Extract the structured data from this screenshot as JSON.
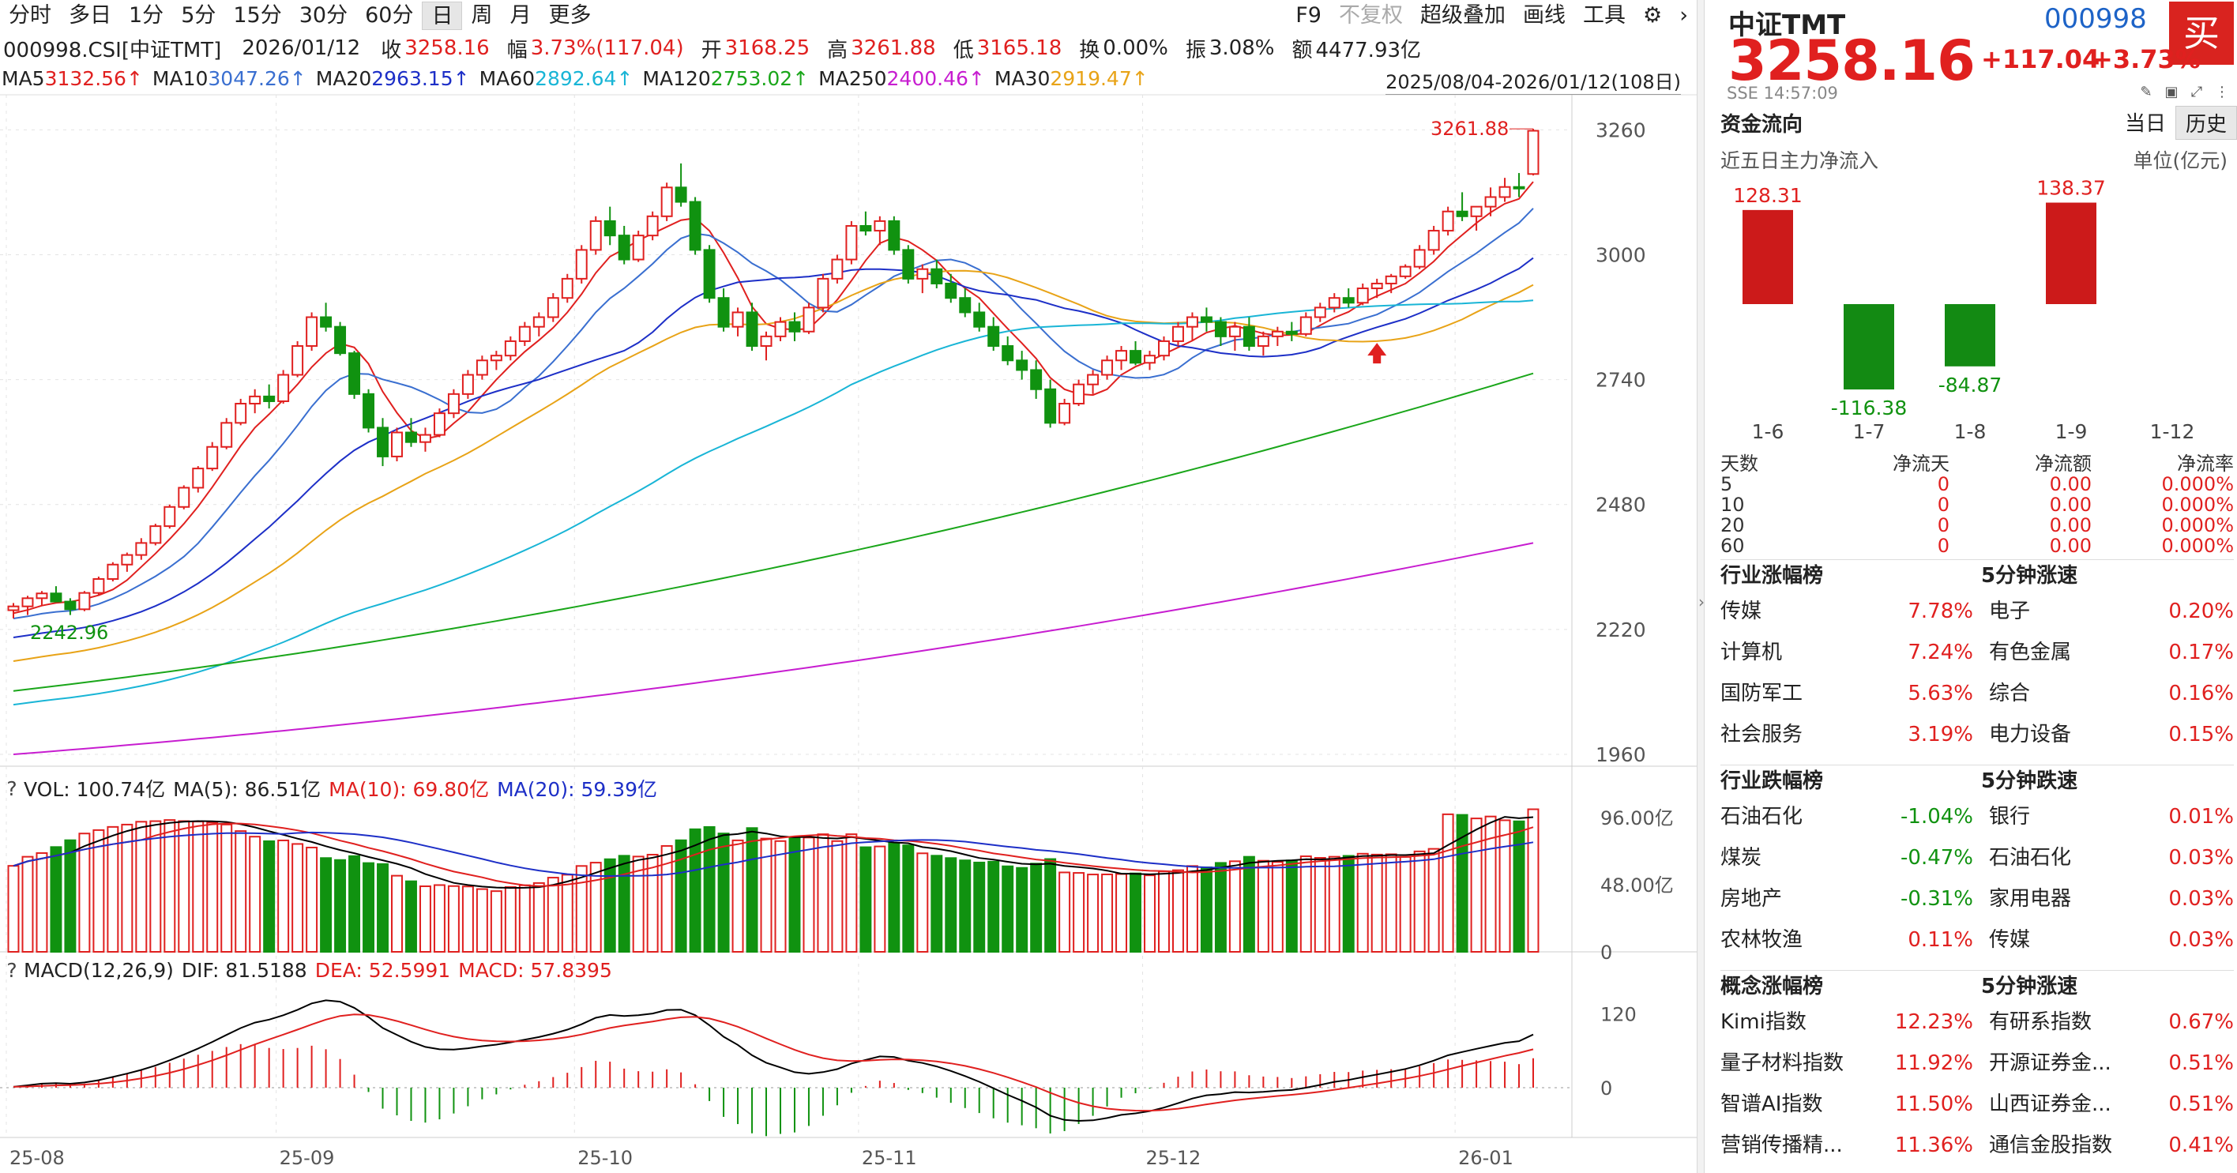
{
  "toolbar": {
    "periods": [
      "分时",
      "多日",
      "1分",
      "5分",
      "15分",
      "30分",
      "60分",
      "日",
      "周",
      "月",
      "更多"
    ],
    "active_period": "日",
    "right_items": [
      "F9",
      "不复权",
      "超级叠加",
      "画线",
      "工具"
    ]
  },
  "quote_line": {
    "code": "000998.CSI[中证TMT]",
    "date": "2026/01/12",
    "close_label": "收",
    "close": "3258.16",
    "amp_label": "幅",
    "amp": "3.73%(117.04)",
    "open_label": "开",
    "open": "3168.25",
    "high_label": "高",
    "high": "3261.88",
    "low_label": "低",
    "low": "3165.18",
    "turnover_label": "换",
    "turnover": "0.00%",
    "swing_label": "振",
    "swing": "3.08%",
    "amount_label": "额",
    "amount": "4477.93亿"
  },
  "ma_legend": [
    {
      "label": "MA5",
      "value": "3132.56↑",
      "color": "#e0201f"
    },
    {
      "label": "MA10",
      "value": "3047.26↑",
      "color": "#3a6fd0"
    },
    {
      "label": "MA20",
      "value": "2963.15↑",
      "color": "#1d2fc7"
    },
    {
      "label": "MA60",
      "value": "2892.64↑",
      "color": "#19b5d6"
    },
    {
      "label": "MA120",
      "value": "2753.02↑",
      "color": "#1aa61a"
    },
    {
      "label": "MA250",
      "value": "2400.46↑",
      "color": "#c71dd0"
    },
    {
      "label": "MA30",
      "value": "2919.47↑",
      "color": "#e8a317"
    }
  ],
  "date_range": "2025/08/04-2026/01/12(108日)",
  "price_axis": [
    "3260",
    "3000",
    "2740",
    "2480",
    "2220",
    "1960"
  ],
  "price_annotations": {
    "high": "3261.88",
    "low": "2242.96"
  },
  "volume_legend": {
    "vol": "VOL: 100.74亿",
    "ma5": "MA(5): 86.51亿",
    "ma10": "MA(10): 69.80亿",
    "ma20": "MA(20): 59.39亿"
  },
  "volume_axis": [
    "96.00亿",
    "48.00亿",
    "0"
  ],
  "macd_legend": {
    "title": "MACD(12,26,9)",
    "dif": "DIF: 81.5188",
    "dea": "DEA: 52.5991",
    "macd": "MACD: 57.8395"
  },
  "macd_axis": [
    "120",
    "0"
  ],
  "x_axis": [
    "25-08",
    "25-09",
    "25-10",
    "25-11",
    "25-12",
    "26-01"
  ],
  "colors": {
    "up": "#e0201f",
    "down": "#109210",
    "accent": "#1d63c7"
  },
  "right_panel": {
    "name": "中证TMT",
    "code": "000998",
    "buy_label": "买",
    "price": "3258.16",
    "change": "+117.04",
    "change_pct": "+3.73%",
    "exchange_time": "SSE  14:57:09",
    "flow": {
      "title": "资金流向",
      "tabs": [
        "当日",
        "历史"
      ],
      "active_tab": "历史",
      "subtitle": "近五日主力净流入",
      "unit": "单位(亿元)",
      "days": [
        "1-6",
        "1-7",
        "1-8",
        "1-9",
        "1-12"
      ],
      "values": [
        128.31,
        -116.38,
        -84.87,
        138.37,
        null
      ],
      "value_labels": [
        "128.31",
        "-116.38",
        "-84.87",
        "138.37",
        ""
      ]
    },
    "flow_table": {
      "headers": [
        "天数",
        "净流天",
        "净流额",
        "净流率"
      ],
      "rows": [
        [
          "5",
          "0",
          "0.00",
          "0.000%"
        ],
        [
          "10",
          "0",
          "0.00",
          "0.000%"
        ],
        [
          "20",
          "0",
          "0.00",
          "0.000%"
        ],
        [
          "60",
          "0",
          "0.00",
          "0.000%"
        ]
      ]
    },
    "rankings": [
      {
        "title": "行业涨幅榜",
        "title2": "5分钟涨速",
        "rows": [
          [
            "传媒",
            "7.78%",
            "电子",
            "0.20%"
          ],
          [
            "计算机",
            "7.24%",
            "有色金属",
            "0.17%"
          ],
          [
            "国防军工",
            "5.63%",
            "综合",
            "0.16%"
          ],
          [
            "社会服务",
            "3.19%",
            "电力设备",
            "0.15%"
          ]
        ]
      },
      {
        "title": "行业跌幅榜",
        "title2": "5分钟跌速",
        "rows": [
          [
            "石油石化",
            "-1.04%",
            "银行",
            "0.01%"
          ],
          [
            "煤炭",
            "-0.47%",
            "石油石化",
            "0.03%"
          ],
          [
            "房地产",
            "-0.31%",
            "家用电器",
            "0.03%"
          ],
          [
            "农林牧渔",
            "0.11%",
            "传媒",
            "0.03%"
          ]
        ]
      },
      {
        "title": "概念涨幅榜",
        "title2": "5分钟涨速",
        "rows": [
          [
            "Kimi指数",
            "12.23%",
            "有研系指数",
            "0.67%"
          ],
          [
            "量子材料指数",
            "11.92%",
            "开源证券金...",
            "0.51%"
          ],
          [
            "智谱AI指数",
            "11.50%",
            "山西证券金...",
            "0.51%"
          ],
          [
            "营销传播精...",
            "11.36%",
            "通信金股指数",
            "0.41%"
          ]
        ]
      }
    ]
  },
  "chart_data": {
    "type": "candlestick",
    "x_range": [
      "2025-08-04",
      "2026-01-12"
    ],
    "ylim": [
      1960,
      3300
    ],
    "ohlc_keypoints": [
      [
        2260,
        2275,
        2243,
        2268
      ],
      [
        2268,
        2290,
        2250,
        2285
      ],
      [
        2285,
        2300,
        2270,
        2295
      ],
      [
        2295,
        2310,
        2280,
        2278
      ],
      [
        2278,
        2285,
        2250,
        2262
      ],
      [
        2262,
        2300,
        2258,
        2296
      ],
      [
        2296,
        2330,
        2290,
        2325
      ],
      [
        2325,
        2360,
        2320,
        2355
      ],
      [
        2355,
        2380,
        2340,
        2375
      ],
      [
        2375,
        2410,
        2365,
        2400
      ],
      [
        2400,
        2440,
        2395,
        2435
      ],
      [
        2435,
        2480,
        2430,
        2475
      ],
      [
        2475,
        2520,
        2470,
        2515
      ],
      [
        2515,
        2560,
        2505,
        2555
      ],
      [
        2555,
        2610,
        2550,
        2600
      ],
      [
        2600,
        2660,
        2595,
        2650
      ],
      [
        2650,
        2700,
        2645,
        2690
      ],
      [
        2690,
        2720,
        2670,
        2705
      ],
      [
        2705,
        2730,
        2680,
        2695
      ],
      [
        2695,
        2760,
        2690,
        2750
      ],
      [
        2750,
        2820,
        2745,
        2810
      ],
      [
        2810,
        2880,
        2800,
        2870
      ],
      [
        2870,
        2900,
        2840,
        2850
      ],
      [
        2850,
        2860,
        2790,
        2795
      ],
      [
        2795,
        2800,
        2700,
        2710
      ],
      [
        2710,
        2720,
        2630,
        2640
      ],
      [
        2640,
        2660,
        2560,
        2580
      ],
      [
        2580,
        2640,
        2570,
        2630
      ],
      [
        2630,
        2660,
        2600,
        2610
      ],
      [
        2610,
        2640,
        2590,
        2625
      ],
      [
        2625,
        2680,
        2620,
        2670
      ],
      [
        2670,
        2720,
        2660,
        2710
      ],
      [
        2710,
        2760,
        2700,
        2750
      ],
      [
        2750,
        2790,
        2740,
        2780
      ],
      [
        2780,
        2800,
        2760,
        2790
      ],
      [
        2790,
        2830,
        2780,
        2820
      ],
      [
        2820,
        2860,
        2810,
        2850
      ],
      [
        2850,
        2880,
        2830,
        2870
      ],
      [
        2870,
        2920,
        2860,
        2910
      ],
      [
        2910,
        2960,
        2900,
        2950
      ],
      [
        2950,
        3020,
        2940,
        3010
      ],
      [
        3010,
        3080,
        3000,
        3070
      ],
      [
        3070,
        3100,
        3020,
        3040
      ],
      [
        3040,
        3060,
        2980,
        2990
      ],
      [
        2990,
        3050,
        2985,
        3040
      ],
      [
        3040,
        3090,
        3030,
        3080
      ],
      [
        3080,
        3150,
        3070,
        3140
      ],
      [
        3140,
        3190,
        3100,
        3110
      ],
      [
        3110,
        3120,
        3000,
        3010
      ],
      [
        3010,
        3020,
        2900,
        2910
      ],
      [
        2910,
        2930,
        2840,
        2850
      ],
      [
        2850,
        2890,
        2830,
        2880
      ],
      [
        2880,
        2900,
        2800,
        2810
      ],
      [
        2810,
        2840,
        2780,
        2830
      ],
      [
        2830,
        2870,
        2820,
        2860
      ],
      [
        2860,
        2880,
        2820,
        2840
      ],
      [
        2840,
        2900,
        2835,
        2890
      ],
      [
        2890,
        2960,
        2880,
        2950
      ],
      [
        2950,
        3000,
        2940,
        2990
      ],
      [
        2990,
        3070,
        2980,
        3060
      ],
      [
        3060,
        3090,
        3040,
        3050
      ],
      [
        3050,
        3080,
        3020,
        3070
      ],
      [
        3070,
        3080,
        3000,
        3010
      ],
      [
        3010,
        3020,
        2940,
        2950
      ],
      [
        2950,
        2980,
        2920,
        2970
      ],
      [
        2970,
        2990,
        2930,
        2940
      ],
      [
        2940,
        2960,
        2900,
        2910
      ],
      [
        2910,
        2930,
        2870,
        2880
      ],
      [
        2880,
        2900,
        2840,
        2850
      ],
      [
        2850,
        2870,
        2800,
        2810
      ],
      [
        2810,
        2830,
        2770,
        2780
      ],
      [
        2780,
        2800,
        2740,
        2760
      ],
      [
        2760,
        2780,
        2700,
        2720
      ],
      [
        2720,
        2740,
        2640,
        2650
      ],
      [
        2650,
        2700,
        2645,
        2690
      ],
      [
        2690,
        2740,
        2685,
        2730
      ],
      [
        2730,
        2760,
        2710,
        2750
      ],
      [
        2750,
        2790,
        2740,
        2780
      ],
      [
        2780,
        2810,
        2760,
        2800
      ],
      [
        2800,
        2820,
        2770,
        2775
      ],
      [
        2775,
        2800,
        2760,
        2790
      ],
      [
        2790,
        2830,
        2780,
        2820
      ],
      [
        2820,
        2860,
        2810,
        2850
      ],
      [
        2850,
        2880,
        2820,
        2870
      ],
      [
        2870,
        2890,
        2840,
        2860
      ],
      [
        2860,
        2870,
        2810,
        2830
      ],
      [
        2830,
        2860,
        2800,
        2850
      ],
      [
        2850,
        2870,
        2800,
        2810
      ],
      [
        2810,
        2840,
        2790,
        2830
      ],
      [
        2830,
        2850,
        2810,
        2840
      ],
      [
        2840,
        2860,
        2820,
        2835
      ],
      [
        2835,
        2880,
        2830,
        2870
      ],
      [
        2870,
        2900,
        2860,
        2890
      ],
      [
        2890,
        2920,
        2880,
        2910
      ],
      [
        2910,
        2930,
        2890,
        2900
      ],
      [
        2900,
        2940,
        2895,
        2930
      ],
      [
        2930,
        2950,
        2910,
        2940
      ],
      [
        2940,
        2960,
        2920,
        2955
      ],
      [
        2955,
        2980,
        2950,
        2975
      ],
      [
        2975,
        3020,
        2970,
        3010
      ],
      [
        3010,
        3060,
        3000,
        3050
      ],
      [
        3050,
        3100,
        3040,
        3090
      ],
      [
        3090,
        3130,
        3070,
        3080
      ],
      [
        3080,
        3100,
        3050,
        3100
      ],
      [
        3100,
        3140,
        3080,
        3120
      ],
      [
        3120,
        3160,
        3110,
        3141
      ],
      [
        3141,
        3170,
        3120,
        3140
      ],
      [
        3168,
        3262,
        3165,
        3258
      ]
    ]
  }
}
